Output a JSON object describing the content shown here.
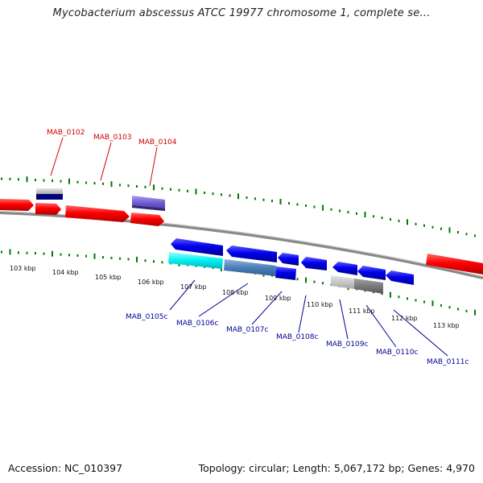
{
  "title": "Mycobacterium abscessus ATCC 19977 chromosome 1, complete se...",
  "footer": {
    "accession": "Accession: NC_010397",
    "summary": "Topology: circular; Length: 5,067,172 bp; Genes: 4,970"
  },
  "colors": {
    "plus_gene": "#ff0000",
    "minus_gene": "#0000ee",
    "plus_label": "#cc0000",
    "minus_label": "#00009a",
    "tick": "#007a00",
    "backbone": "#8a8a8a"
  },
  "plus_genes": [
    {
      "name": "MAB_0102"
    },
    {
      "name": "MAB_0103"
    },
    {
      "name": "MAB_0104"
    }
  ],
  "minus_genes": [
    {
      "name": "MAB_0105c"
    },
    {
      "name": "MAB_0106c"
    },
    {
      "name": "MAB_0107c"
    },
    {
      "name": "MAB_0108c"
    },
    {
      "name": "MAB_0109c"
    },
    {
      "name": "MAB_0110c"
    },
    {
      "name": "MAB_0111c"
    }
  ],
  "kbp_labels": [
    "103 kbp",
    "104 kbp",
    "105 kbp",
    "106 kbp",
    "107 kbp",
    "108 kbp",
    "109 kbp",
    "110 kbp",
    "111 kbp",
    "112 kbp",
    "113 kbp"
  ]
}
